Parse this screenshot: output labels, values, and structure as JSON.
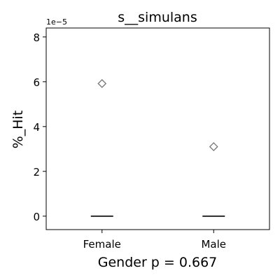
{
  "chart_data": {
    "type": "box",
    "title": "s__simulans",
    "xlabel": "Gender p = 0.667",
    "ylabel": "%_Hit",
    "y_offset_label": "1e−5",
    "y_multiplier": 1e-05,
    "categories": [
      "Female",
      "Male"
    ],
    "medians": [
      0,
      0
    ],
    "outliers": [
      [
        5.92e-05
      ],
      [
        3.1e-05
      ]
    ],
    "ylim": [
      -6e-06,
      8.4e-05
    ],
    "yticks": [
      0,
      2e-05,
      4e-05,
      6e-05,
      8e-05
    ],
    "ytick_labels": [
      "0",
      "2",
      "4",
      "6",
      "8"
    ],
    "grid": false,
    "colors": {
      "median": "#000000",
      "outlier": "#777777",
      "axes": "#000000"
    }
  }
}
